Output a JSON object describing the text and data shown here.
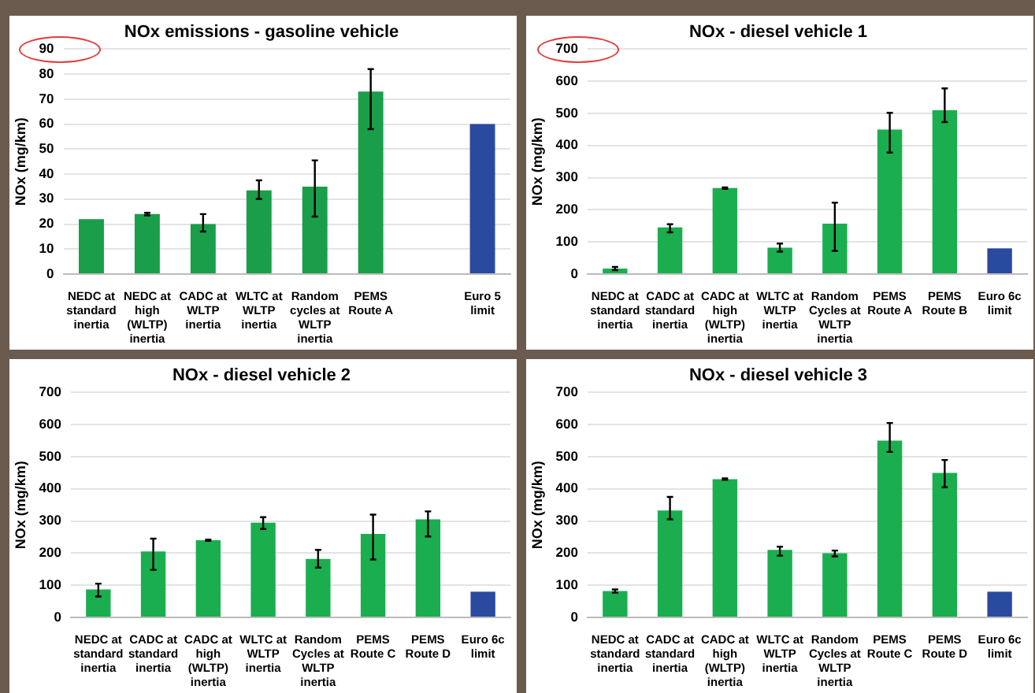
{
  "chart_data": [
    {
      "type": "bar",
      "title": "NOx emissions - gasoline vehicle",
      "ylabel": "NOx (mg/km)",
      "categories": [
        "NEDC at standard inertia",
        "NEDC at high (WLTP) inertia",
        "CADC at WLTP inertia",
        "WLTC at WLTP inertia",
        "Random cycles at WLTP inertia",
        "PEMS Route A",
        null,
        "Euro 5 limit"
      ],
      "values": [
        22,
        24,
        20,
        33.5,
        35,
        73,
        null,
        60
      ],
      "errors": [
        null,
        [
          23.5,
          24.5
        ],
        [
          17,
          24
        ],
        [
          30,
          37.5
        ],
        [
          23,
          45.5
        ],
        [
          58,
          82
        ],
        null,
        null
      ],
      "colors": [
        "#1a9e4a",
        "#1a9e4a",
        "#1a9e4a",
        "#1a9e4a",
        "#1a9e4a",
        "#1a9e4a",
        null,
        "#2a4aa0"
      ],
      "ylim": [
        0,
        90
      ],
      "yticks": [
        0,
        10,
        20,
        30,
        40,
        50,
        60,
        70,
        80,
        90
      ],
      "grid": "y",
      "legend": false
    },
    {
      "type": "bar",
      "title": "NOx - diesel vehicle 1",
      "ylabel": "NOx (mg/km)",
      "categories": [
        "NEDC at standard inertia",
        "CADC at standard inertia",
        "CADC at high (WLTP) inertia",
        "WLTC at WLTP inertia",
        "Random Cycles at WLTP inertia",
        "PEMS Route A",
        "PEMS Route B",
        "Euro 6c limit"
      ],
      "values": [
        17,
        145,
        268,
        82,
        157,
        450,
        510,
        80
      ],
      "errors": [
        [
          12,
          22
        ],
        [
          130,
          155
        ],
        [
          265,
          270
        ],
        [
          70,
          95
        ],
        [
          72,
          222
        ],
        [
          378,
          502
        ],
        [
          473,
          578
        ],
        null
      ],
      "colors": [
        "#1aae4f",
        "#1aae4f",
        "#1aae4f",
        "#1aae4f",
        "#1aae4f",
        "#1aae4f",
        "#1aae4f",
        "#2a4aa0"
      ],
      "ylim": [
        0,
        700
      ],
      "yticks": [
        0,
        100,
        200,
        300,
        400,
        500,
        600,
        700
      ],
      "grid": "y",
      "legend": false
    },
    {
      "type": "bar",
      "title": "NOx - diesel vehicle 2",
      "ylabel": "NOx (mg/km)",
      "categories": [
        "NEDC at standard inertia",
        "CADC at standard inertia",
        "CADC at high (WLTP) inertia",
        "WLTC at WLTP inertia",
        "Random Cycles at WLTP inertia",
        "PEMS Route C",
        "PEMS Route D",
        "Euro 6c limit"
      ],
      "values": [
        87,
        205,
        240,
        295,
        182,
        260,
        305,
        80
      ],
      "errors": [
        [
          65,
          105
        ],
        [
          148,
          245
        ],
        [
          238,
          242
        ],
        [
          275,
          312
        ],
        [
          155,
          210
        ],
        [
          180,
          320
        ],
        [
          252,
          330
        ],
        null
      ],
      "colors": [
        "#1aae4f",
        "#1aae4f",
        "#1aae4f",
        "#1aae4f",
        "#1aae4f",
        "#1aae4f",
        "#1aae4f",
        "#2a4aa0"
      ],
      "ylim": [
        0,
        700
      ],
      "yticks": [
        0,
        100,
        200,
        300,
        400,
        500,
        600,
        700
      ],
      "grid": "y",
      "legend": false
    },
    {
      "type": "bar",
      "title": "NOx - diesel vehicle 3",
      "ylabel": "NOx (mg/km)",
      "categories": [
        "NEDC at standard inertia",
        "CADC at standard inertia",
        "CADC at high (WLTP) inertia",
        "WLTC at WLTP inertia",
        "Random Cycles at WLTP inertia",
        "PEMS Route C",
        "PEMS Route D",
        "Euro 6c limit"
      ],
      "values": [
        82,
        333,
        430,
        210,
        200,
        550,
        450,
        80
      ],
      "errors": [
        [
          77,
          87
        ],
        [
          305,
          375
        ],
        [
          428,
          433
        ],
        [
          192,
          220
        ],
        [
          190,
          208
        ],
        [
          515,
          605
        ],
        [
          405,
          490
        ],
        null
      ],
      "colors": [
        "#1aae4f",
        "#1aae4f",
        "#1aae4f",
        "#1aae4f",
        "#1aae4f",
        "#1aae4f",
        "#1aae4f",
        "#2a4aa0"
      ],
      "ylim": [
        0,
        700
      ],
      "yticks": [
        0,
        100,
        200,
        300,
        400,
        500,
        600,
        700
      ],
      "grid": "y",
      "legend": false
    }
  ]
}
